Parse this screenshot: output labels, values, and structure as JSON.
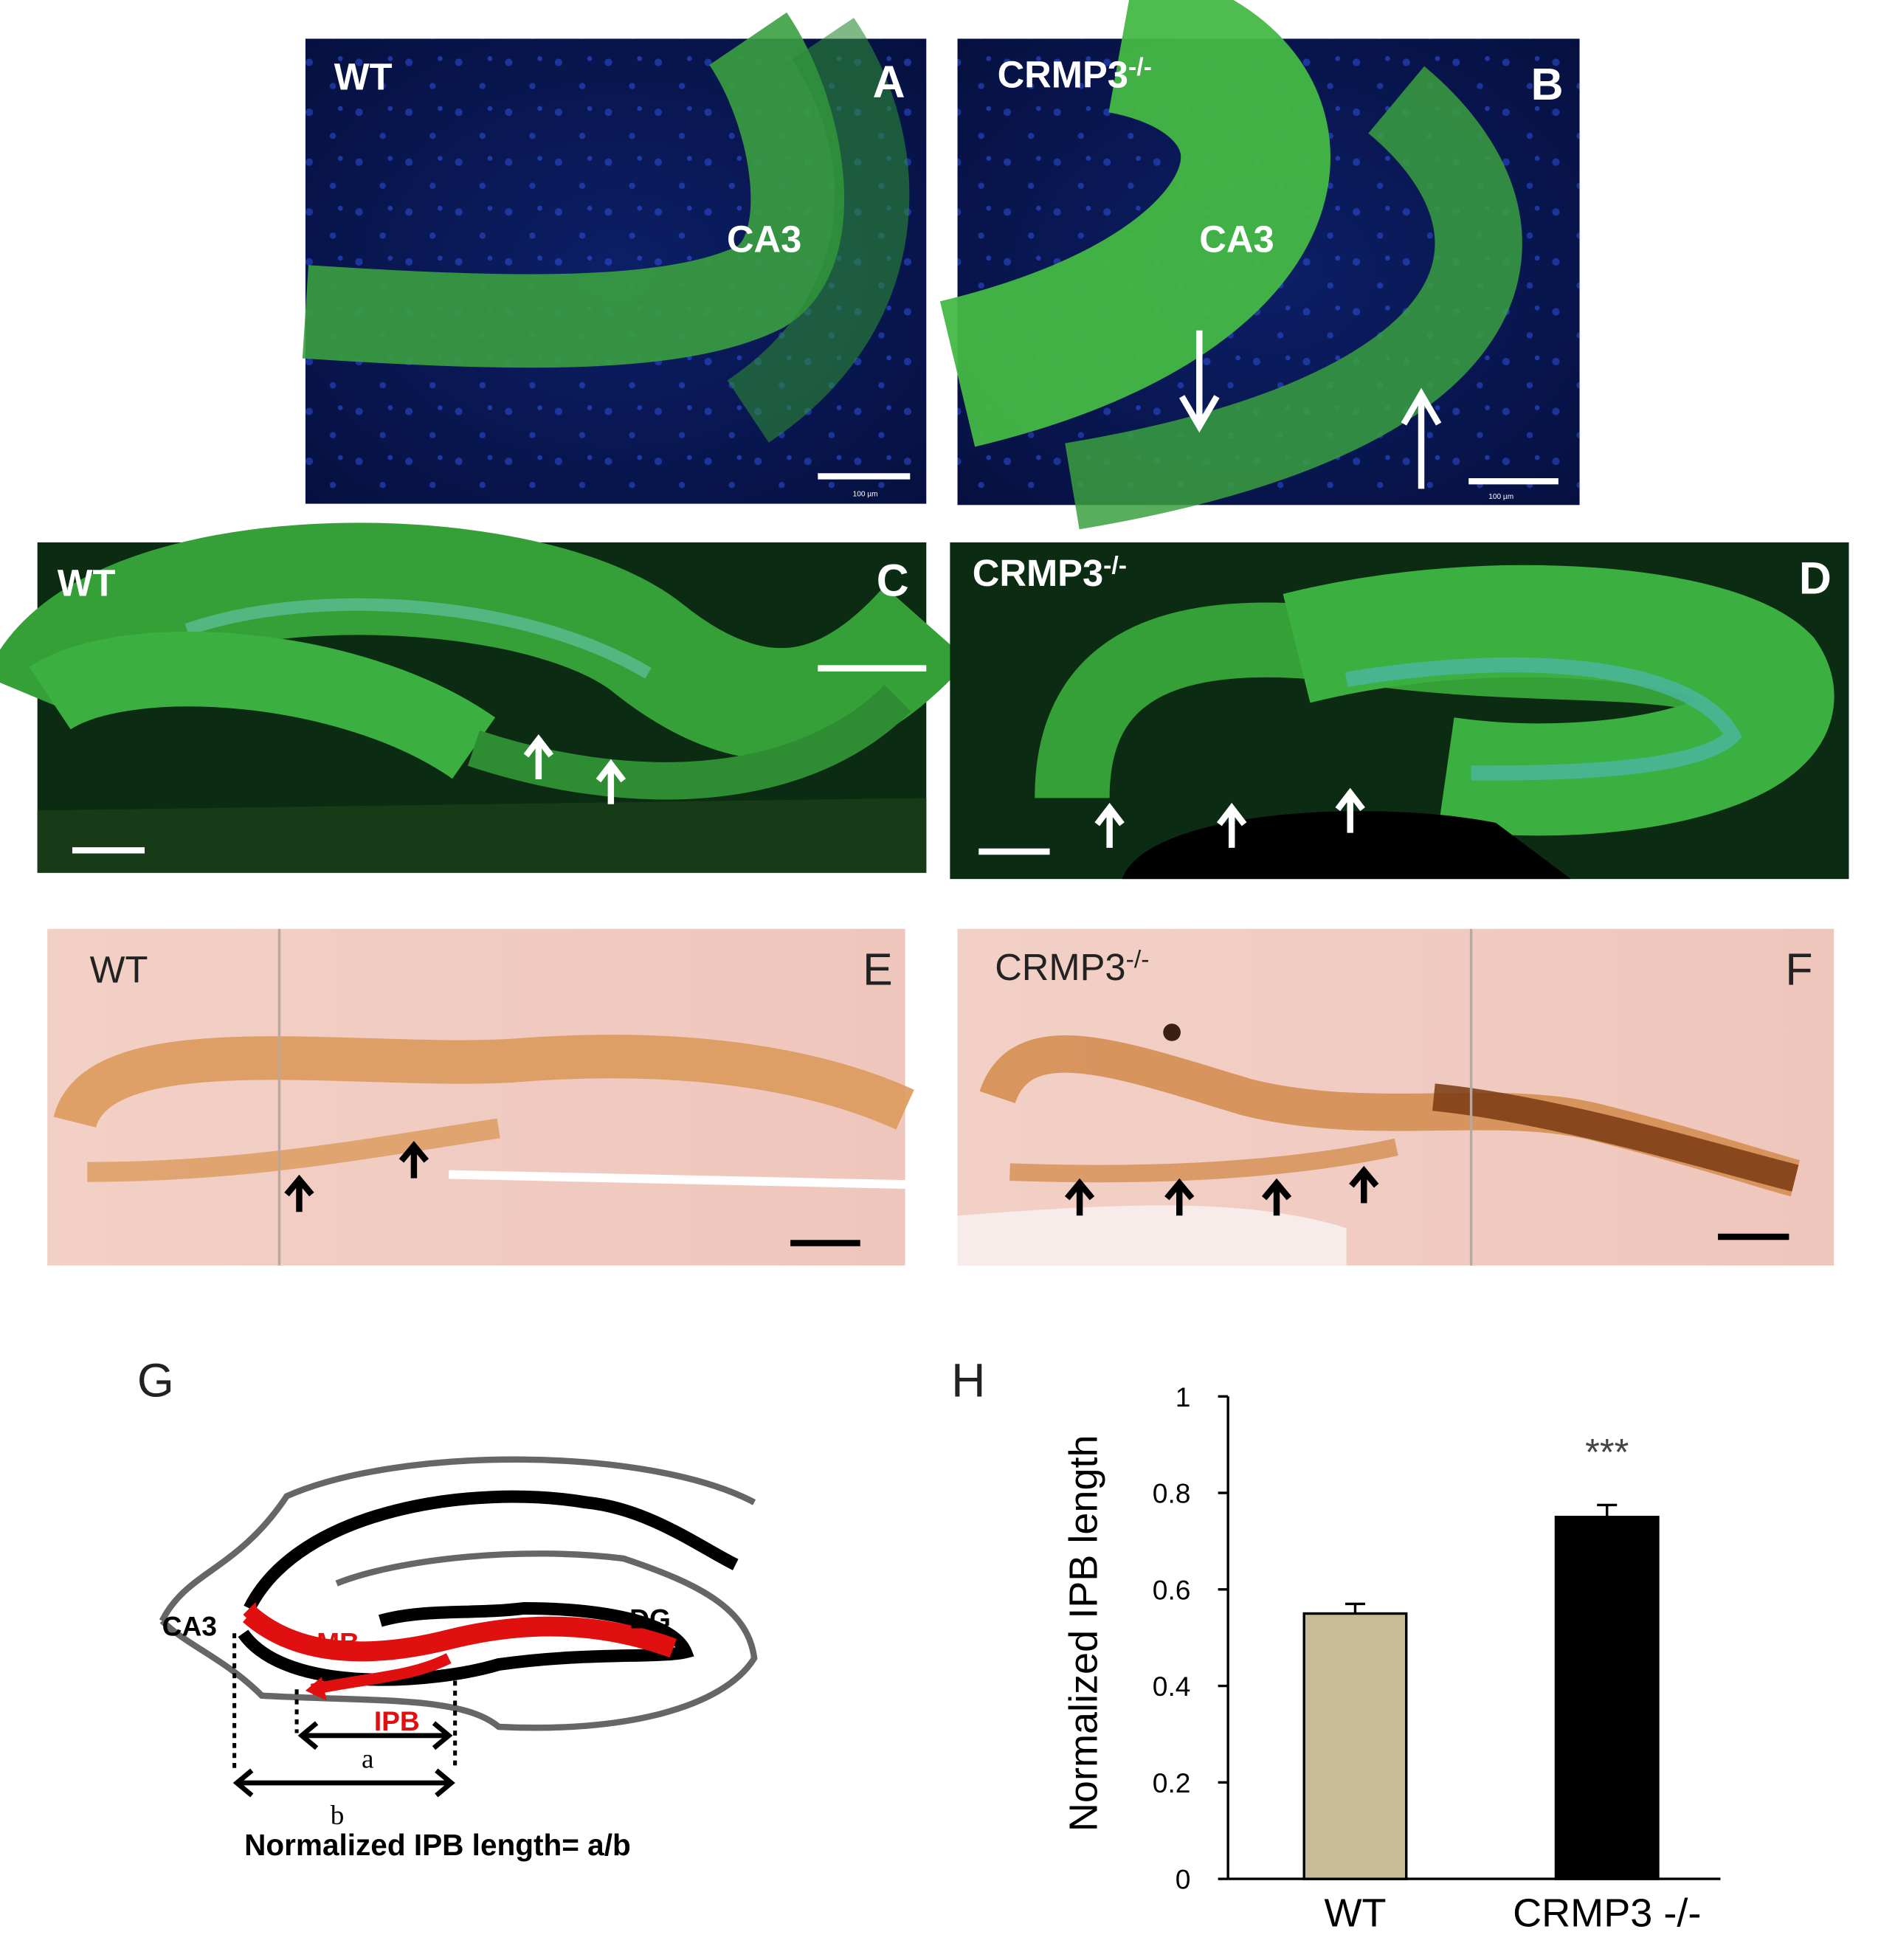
{
  "panel_a": {
    "letter": "A",
    "genotype": "WT",
    "region": "CA3",
    "scale_label": "100 µm"
  },
  "panel_b": {
    "letter": "B",
    "genotype": "CRMP3",
    "genotype_superscript": "-/-",
    "region": "CA3",
    "scale_label": "100 µm"
  },
  "panel_c": {
    "letter": "C",
    "genotype": "WT"
  },
  "panel_d": {
    "letter": "D",
    "genotype": "CRMP3",
    "genotype_superscript": "-/-"
  },
  "panel_e": {
    "letter": "E",
    "genotype": "WT"
  },
  "panel_f": {
    "letter": "F",
    "genotype": "CRMP3",
    "genotype_superscript": "-/-"
  },
  "panel_g": {
    "letter": "G",
    "labels": {
      "ca3": "CA3",
      "mb": "MB",
      "dg": "DG",
      "ipb": "IPB",
      "a": "a",
      "b": "b"
    },
    "formula": "Normalized IPB length= a/b"
  },
  "chart_data": {
    "type": "bar",
    "panel_letter": "H",
    "ylabel": "Normalized IPB length",
    "categories": [
      "WT",
      "CRMP3 -/-"
    ],
    "values": [
      0.55,
      0.75
    ],
    "errors": [
      0.02,
      0.025
    ],
    "colors": [
      "#c8bc96",
      "#000000"
    ],
    "annotation": "***",
    "ylim": [
      0,
      1
    ],
    "yticks": [
      0,
      0.2,
      0.4,
      0.6,
      0.8,
      1
    ]
  }
}
